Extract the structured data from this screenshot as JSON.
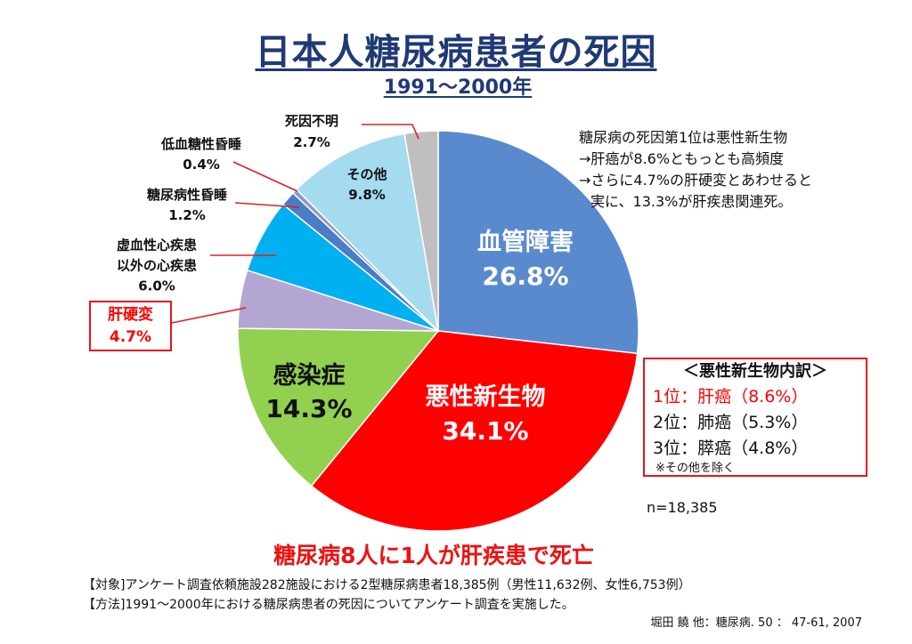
{
  "chart_data": {
    "type": "pie",
    "title": "日本人糖尿病患者の死因",
    "subtitle": "1991～2000年",
    "slices": [
      {
        "label": "血管障害",
        "value": 26.8,
        "value_label": "26.8%",
        "color": "#5a8ace"
      },
      {
        "label": "悪性新生物",
        "value": 34.1,
        "value_label": "34.1%",
        "color": "#ff0000"
      },
      {
        "label": "感染症",
        "value": 14.3,
        "value_label": "14.3%",
        "color": "#92d050"
      },
      {
        "label": "肝硬変",
        "value": 4.7,
        "value_label": "4.7%",
        "color": "#b3a6d3"
      },
      {
        "label": "虚血性心疾患\n以外の心疾患",
        "value": 6.0,
        "value_label": "6.0%",
        "color": "#00b0f0"
      },
      {
        "label": "糖尿病性昏睡",
        "value": 1.2,
        "value_label": "1.2%",
        "color": "#4a7cc7"
      },
      {
        "label": "低血糖性昏睡",
        "value": 0.4,
        "value_label": "0.4%",
        "color": "#8f98c9"
      },
      {
        "label": "その他",
        "value": 9.8,
        "value_label": "9.8%",
        "color": "#a5dbef"
      },
      {
        "label": "死因不明",
        "value": 2.7,
        "value_label": "2.7%",
        "color": "#bfbfbf"
      }
    ],
    "n_label": "n=18,385"
  },
  "annotation": {
    "lines": [
      "糖尿病の死因第1位は悪性新生物",
      "→肝癌が8.6%ともっとも高頻度",
      "→さらに4.7%の肝硬変とあわせると",
      "実に、13.3%が肝疾患関連死。"
    ]
  },
  "breakdown": {
    "title": "＜悪性新生物内訳＞",
    "items": [
      "1位：肝癌（8.6%）",
      "2位：肺癌（5.3%）",
      "3位：膵癌（4.8%）"
    ],
    "note": "※その他を除く"
  },
  "conclusion": "糖尿病8人に1人が肝疾患で死亡",
  "footnotes": [
    "【対象]アンケート調査依頼施設282施設における2型糖尿病患者18,385例（男性11,632例、女性6,753例）",
    "【方法]1991～2000年における糖尿病患者の死因についてアンケート調査を実施した。"
  ],
  "citation": "堀田 饒 他：糖尿病. 50 ： 47-61, 2007",
  "colors": {
    "title": "#1f3a75",
    "accent": "#ff0000",
    "leader_line": "#e02020"
  }
}
